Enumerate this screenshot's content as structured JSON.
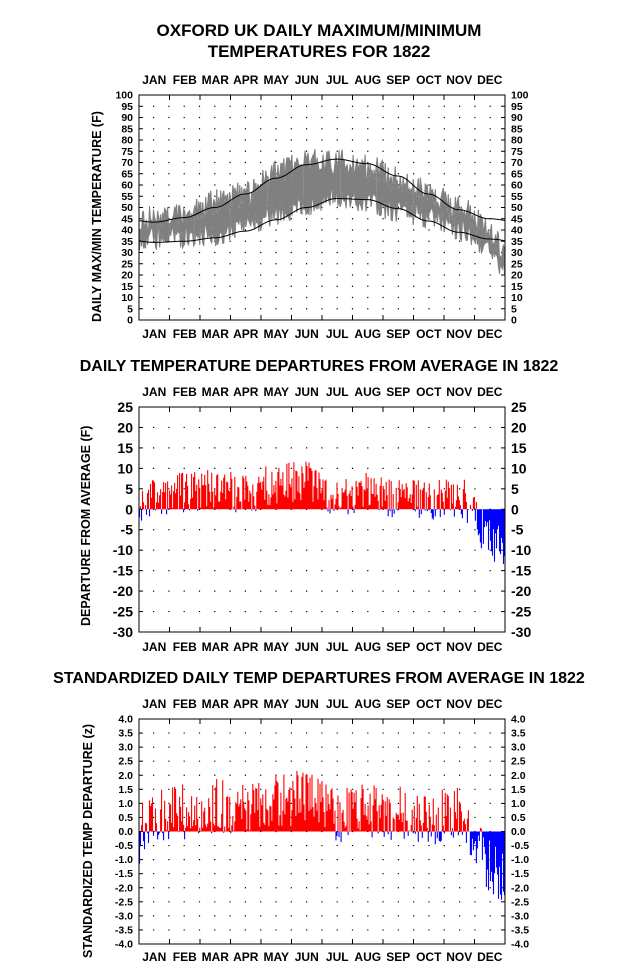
{
  "months": [
    "JAN",
    "FEB",
    "MAR",
    "APR",
    "MAY",
    "JUN",
    "JUL",
    "AUG",
    "SEP",
    "OCT",
    "NOV",
    "DEC"
  ],
  "colors": {
    "obs": "#808080",
    "normal": "#000000",
    "positive": "#ff0000",
    "negative": "#0000ff"
  },
  "chart_data": [
    {
      "type": "line",
      "title_line1": "OXFORD UK DAILY MAXIMUM/MINIMUM",
      "title_line2": "TEMPERATURES FOR 1822",
      "xlabel": "",
      "ylabel": "DAILY MAX/MIN TEMPERATURE (F)",
      "ylim": [
        0,
        100
      ],
      "yticks": [
        0,
        5,
        10,
        15,
        20,
        25,
        30,
        35,
        40,
        45,
        50,
        55,
        60,
        65,
        70,
        75,
        80,
        85,
        90,
        95,
        100
      ],
      "x": "day of year 1822 (1-365)",
      "series": [
        {
          "role": "observed",
          "color": "#808080",
          "approx_monthly_max": [
            45,
            48,
            52,
            56,
            66,
            70,
            70,
            68,
            63,
            57,
            50,
            41
          ],
          "approx_monthly_min": [
            36,
            37,
            38,
            42,
            47,
            51,
            54,
            53,
            48,
            46,
            40,
            33
          ]
        },
        {
          "role": "normal max",
          "color": "#000000",
          "monthly_values": [
            43.5,
            45.5,
            50,
            56,
            63,
            69,
            71.5,
            69.5,
            64,
            56,
            49,
            45
          ]
        },
        {
          "role": "normal min",
          "color": "#000000",
          "monthly_values": [
            34.5,
            35,
            36.5,
            39.5,
            44.5,
            50,
            54,
            53.5,
            49.5,
            44,
            39,
            36
          ]
        }
      ],
      "grid": true
    },
    {
      "type": "bar",
      "title": "DAILY TEMPERATURE DEPARTURES FROM AVERAGE IN 1822",
      "ylabel": "DEPARTURE FROM AVERAGE (F)",
      "ylim": [
        -30,
        25
      ],
      "yticks": [
        -30,
        -25,
        -20,
        -15,
        -10,
        -5,
        0,
        5,
        10,
        15,
        20,
        25
      ],
      "monthly_mean_departure": [
        3,
        4,
        5,
        4,
        6,
        7,
        3,
        4,
        3,
        2,
        3,
        -6
      ],
      "series": [
        {
          "name": "",
          "color_positive": "#ff0000",
          "color_negative": "#0000ff"
        }
      ],
      "grid": true
    },
    {
      "type": "bar",
      "title": "STANDARDIZED DAILY TEMP DEPARTURES FROM AVERAGE IN 1822",
      "ylabel": "STANDARDIZED TEMP DEPARTURE (z)",
      "ylim": [
        -4.0,
        4.0
      ],
      "yticks": [
        "4.0",
        "3.5",
        "3.0",
        "2.5",
        "2.0",
        "1.5",
        "1.0",
        "0.5",
        "0.0",
        "-0.5",
        "-1.0",
        "-1.5",
        "-2.0",
        "-2.5",
        "-3.0",
        "-3.5",
        "-4.0"
      ],
      "monthly_mean_departure": [
        0.6,
        0.7,
        0.9,
        0.7,
        1.0,
        1.3,
        0.6,
        0.8,
        0.6,
        0.4,
        0.6,
        -1.1
      ],
      "grid": true
    }
  ]
}
